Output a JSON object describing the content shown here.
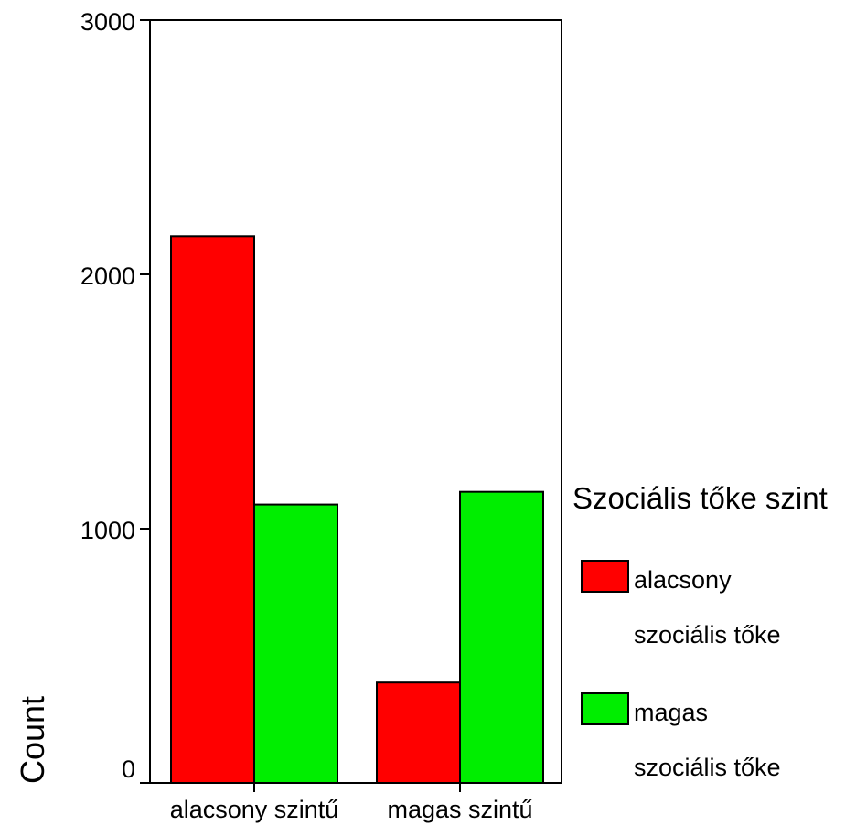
{
  "chart_data": {
    "type": "bar",
    "categories": [
      "alacsony szintű",
      "magas szintű"
    ],
    "series": [
      {
        "name": "alacsony szociális tőke",
        "values": [
          2150,
          395
        ],
        "color": "#ff0000"
      },
      {
        "name": "magas szociális tőke",
        "values": [
          1095,
          1145
        ],
        "color": "#00ee00"
      }
    ],
    "ylabel": "Count",
    "xlabel": "",
    "ylim": [
      0,
      3000
    ],
    "yticks": [
      0,
      1000,
      2000,
      3000
    ],
    "grid": false,
    "legend": {
      "title": "Szociális tőke szint",
      "placement": "right",
      "entries": [
        {
          "line1": "alacsony",
          "line2": "szociális tőke"
        },
        {
          "line1": "magas",
          "line2": "szociális tőke"
        }
      ]
    }
  }
}
